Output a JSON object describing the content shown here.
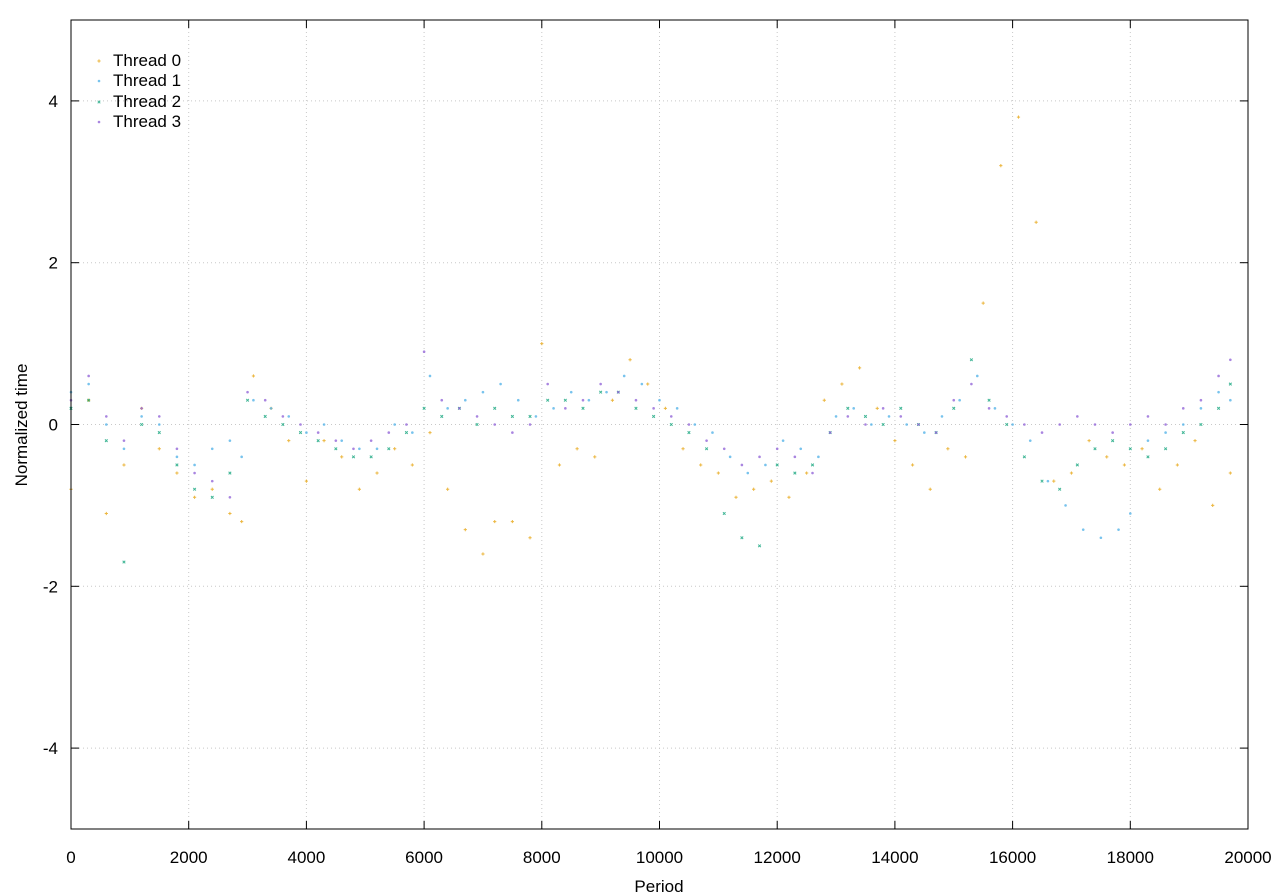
{
  "chart_data": {
    "type": "scatter",
    "title": "",
    "xlabel": "Period",
    "ylabel": "Normalized time",
    "xlim": [
      0,
      20000
    ],
    "ylim": [
      -5,
      5
    ],
    "x_ticks": [
      0,
      2000,
      4000,
      6000,
      8000,
      10000,
      12000,
      14000,
      16000,
      18000,
      20000
    ],
    "y_ticks": [
      -4,
      -2,
      0,
      2,
      4
    ],
    "x_tick_labels": [
      "0",
      "2000",
      "4000",
      "6000",
      "8000",
      "10000",
      "12000",
      "14000",
      "16000",
      "18000",
      "20000"
    ],
    "y_tick_labels": [
      "-4",
      "-2",
      "0",
      "2",
      "4"
    ],
    "grid": true,
    "legend_position": "top-left",
    "series": [
      {
        "name": "Thread 0",
        "color": "#E69F00",
        "marker": "small-cross",
        "x": [
          0,
          300,
          600,
          900,
          1200,
          1500,
          1800,
          2100,
          2400,
          2700,
          2900,
          3100,
          3400,
          3700,
          4000,
          4300,
          4600,
          4900,
          5200,
          5500,
          5800,
          6100,
          6400,
          6700,
          7000,
          7200,
          7500,
          7800,
          8000,
          8300,
          8600,
          8900,
          9200,
          9500,
          9800,
          10100,
          10400,
          10700,
          11000,
          11300,
          11600,
          11900,
          12200,
          12500,
          12800,
          13100,
          13400,
          13700,
          14000,
          14300,
          14600,
          14900,
          15200,
          15500,
          15800,
          16100,
          16400,
          16700,
          17000,
          17300,
          17600,
          17900,
          18200,
          18500,
          18800,
          19100,
          19400,
          19700
        ],
        "y": [
          -0.8,
          0.3,
          -1.1,
          -0.5,
          0.2,
          -0.3,
          -0.6,
          -0.9,
          -0.8,
          -1.1,
          -1.2,
          0.6,
          0.2,
          -0.2,
          -0.7,
          -0.2,
          -0.4,
          -0.8,
          -0.6,
          -0.3,
          -0.5,
          -0.1,
          -0.8,
          -1.3,
          -1.6,
          -1.2,
          -1.2,
          -1.4,
          1.0,
          -0.5,
          -0.3,
          -0.4,
          0.3,
          0.8,
          0.5,
          0.2,
          -0.3,
          -0.5,
          -0.6,
          -0.9,
          -0.8,
          -0.7,
          -0.9,
          -0.6,
          0.3,
          0.5,
          0.7,
          0.2,
          -0.2,
          -0.5,
          -0.8,
          -0.3,
          -0.4,
          1.5,
          3.2,
          3.8,
          2.5,
          -0.7,
          -0.6,
          -0.2,
          -0.4,
          -0.5,
          -0.3,
          -0.8,
          -0.5,
          -0.2,
          -1.0,
          -0.6
        ]
      },
      {
        "name": "Thread 1",
        "color": "#56B4E9",
        "marker": "dot",
        "x": [
          0,
          300,
          600,
          900,
          1200,
          1500,
          1800,
          2100,
          2400,
          2700,
          2900,
          3100,
          3400,
          3700,
          4000,
          4300,
          4600,
          4900,
          5200,
          5500,
          5800,
          6100,
          6400,
          6700,
          7000,
          7300,
          7600,
          7900,
          8200,
          8500,
          8800,
          9100,
          9400,
          9700,
          10000,
          10300,
          10600,
          10900,
          11200,
          11500,
          11800,
          12100,
          12400,
          12700,
          13000,
          13300,
          13600,
          13900,
          14200,
          14500,
          14800,
          15100,
          15400,
          15700,
          16000,
          16300,
          16600,
          16900,
          17200,
          17500,
          17800,
          18000,
          18300,
          18600,
          18900,
          19200,
          19500,
          19700
        ],
        "y": [
          0.4,
          0.5,
          0.0,
          -0.3,
          0.1,
          0.0,
          -0.4,
          -0.5,
          -0.3,
          -0.2,
          -0.4,
          0.3,
          0.2,
          0.1,
          -0.1,
          0.0,
          -0.2,
          -0.3,
          -0.3,
          0.0,
          -0.1,
          0.6,
          0.2,
          0.3,
          0.4,
          0.5,
          0.3,
          0.1,
          0.2,
          0.4,
          0.3,
          0.4,
          0.6,
          0.5,
          0.3,
          0.2,
          0.0,
          -0.1,
          -0.4,
          -0.6,
          -0.5,
          -0.2,
          -0.3,
          -0.4,
          0.1,
          0.2,
          0.0,
          0.1,
          0.0,
          -0.1,
          0.1,
          0.3,
          0.6,
          0.2,
          0.0,
          -0.2,
          -0.7,
          -1.0,
          -1.3,
          -1.4,
          -1.3,
          -1.1,
          -0.2,
          -0.1,
          0.0,
          0.2,
          0.4,
          0.3
        ]
      },
      {
        "name": "Thread 2",
        "color": "#009E73",
        "marker": "small-x",
        "x": [
          0,
          300,
          600,
          900,
          1200,
          1500,
          1800,
          2100,
          2400,
          2700,
          3000,
          3300,
          3600,
          3900,
          4200,
          4500,
          4800,
          5100,
          5400,
          5700,
          6000,
          6300,
          6600,
          6900,
          7200,
          7500,
          7800,
          8100,
          8400,
          8700,
          9000,
          9300,
          9600,
          9900,
          10200,
          10500,
          10800,
          11100,
          11400,
          11700,
          12000,
          12300,
          12600,
          12900,
          13200,
          13500,
          13800,
          14100,
          14400,
          14700,
          15000,
          15300,
          15600,
          15900,
          16200,
          16500,
          16800,
          17100,
          17400,
          17700,
          18000,
          18300,
          18600,
          18900,
          19200,
          19500,
          19700
        ],
        "y": [
          0.2,
          0.3,
          -0.2,
          -1.7,
          0.0,
          -0.1,
          -0.5,
          -0.8,
          -0.9,
          -0.6,
          0.3,
          0.1,
          0.0,
          -0.1,
          -0.2,
          -0.3,
          -0.4,
          -0.4,
          -0.3,
          -0.1,
          0.2,
          0.1,
          0.2,
          0.0,
          0.2,
          0.1,
          0.1,
          0.3,
          0.3,
          0.2,
          0.4,
          0.4,
          0.2,
          0.1,
          0.0,
          -0.1,
          -0.3,
          -1.1,
          -1.4,
          -1.5,
          -0.5,
          -0.6,
          -0.5,
          -0.1,
          0.2,
          0.1,
          0.0,
          0.2,
          0.0,
          -0.1,
          0.2,
          0.8,
          0.3,
          0.0,
          -0.4,
          -0.7,
          -0.8,
          -0.5,
          -0.3,
          -0.2,
          -0.3,
          -0.4,
          -0.3,
          -0.1,
          0.0,
          0.2,
          0.5
        ]
      },
      {
        "name": "Thread 3",
        "color": "#9467D8",
        "marker": "dot",
        "x": [
          0,
          300,
          600,
          900,
          1200,
          1500,
          1800,
          2100,
          2400,
          2700,
          3000,
          3300,
          3600,
          3900,
          4200,
          4500,
          4800,
          5100,
          5400,
          5700,
          6000,
          6300,
          6600,
          6900,
          7200,
          7500,
          7800,
          8100,
          8400,
          8700,
          9000,
          9300,
          9600,
          9900,
          10200,
          10500,
          10800,
          11100,
          11400,
          11700,
          12000,
          12300,
          12600,
          12900,
          13200,
          13500,
          13800,
          14100,
          14400,
          14700,
          15000,
          15300,
          15600,
          15900,
          16200,
          16500,
          16800,
          17100,
          17400,
          17700,
          18000,
          18300,
          18600,
          18900,
          19200,
          19500,
          19700
        ],
        "y": [
          0.3,
          0.6,
          0.1,
          -0.2,
          0.2,
          0.1,
          -0.3,
          -0.6,
          -0.7,
          -0.9,
          0.4,
          0.3,
          0.1,
          0.0,
          -0.1,
          -0.2,
          -0.3,
          -0.2,
          -0.1,
          0.0,
          0.9,
          0.3,
          0.2,
          0.1,
          0.0,
          -0.1,
          0.0,
          0.5,
          0.2,
          0.3,
          0.5,
          0.4,
          0.3,
          0.2,
          0.1,
          0.0,
          -0.2,
          -0.3,
          -0.5,
          -0.4,
          -0.3,
          -0.4,
          -0.6,
          -0.1,
          0.1,
          0.0,
          0.2,
          0.1,
          0.0,
          -0.1,
          0.3,
          0.5,
          0.2,
          0.1,
          0.0,
          -0.1,
          0.0,
          0.1,
          0.0,
          -0.1,
          0.0,
          0.1,
          0.0,
          0.2,
          0.3,
          0.6,
          0.8
        ]
      }
    ]
  }
}
